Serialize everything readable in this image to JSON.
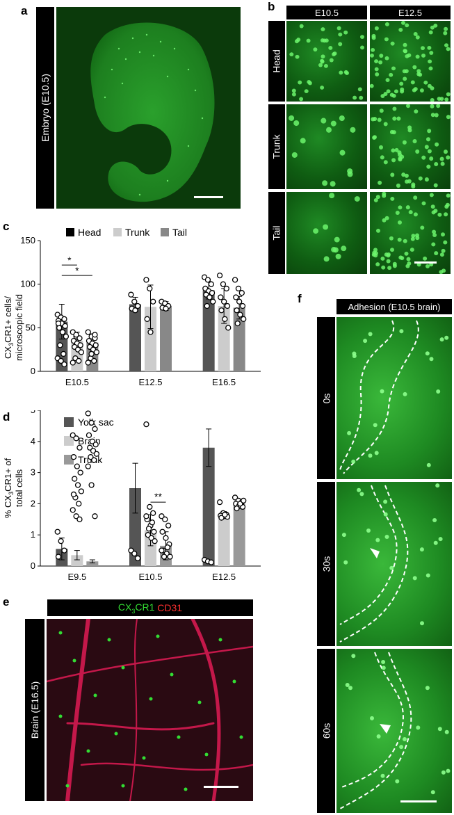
{
  "panels": {
    "a": {
      "label": "a",
      "side_label": "Embryo (E10.5)"
    },
    "b": {
      "label": "b",
      "columns": [
        "E10.5",
        "E12.5"
      ],
      "rows": [
        "Head",
        "Trunk",
        "Tail"
      ]
    },
    "c": {
      "label": "c"
    },
    "d": {
      "label": "d"
    },
    "e": {
      "label": "e",
      "side_label": "Brain (E16.5)",
      "title_green": "CX",
      "title_sub": "3",
      "title_green_rest": "CR1",
      "title_red": "CD31"
    },
    "f": {
      "label": "f",
      "title": "Adhesion (E10.5 brain)",
      "rows": [
        "0s",
        "30s",
        "60s"
      ]
    }
  },
  "chart_data": [
    {
      "id": "c",
      "type": "bar",
      "categories": [
        "E10.5",
        "E12.5",
        "E16.5"
      ],
      "series": [
        {
          "name": "Head",
          "values": [
            57,
            77,
            93
          ],
          "errors": [
            20,
            8,
            10
          ]
        },
        {
          "name": "Trunk",
          "values": [
            35,
            74,
            75
          ],
          "errors": [
            10,
            25,
            20
          ]
        },
        {
          "name": "Tail",
          "values": [
            33,
            75,
            73
          ],
          "errors": [
            10,
            5,
            13
          ]
        }
      ],
      "points": [
        [
          [
            65,
            62,
            60,
            58,
            55,
            52,
            50,
            45,
            40,
            30,
            20,
            15,
            12,
            8,
            55
          ],
          [
            45,
            40,
            38,
            35,
            32,
            30,
            28,
            25,
            22,
            15,
            12,
            10,
            42
          ],
          [
            45,
            40,
            38,
            35,
            32,
            30,
            28,
            25,
            22,
            15,
            12,
            10,
            20,
            42
          ]
        ],
        [
          [
            88,
            80,
            75,
            72,
            70
          ],
          [
            105,
            95,
            80,
            60,
            45
          ],
          [
            80,
            78,
            75,
            73,
            72
          ]
        ],
        [
          [
            108,
            105,
            100,
            95,
            92,
            90,
            88,
            85,
            80,
            75
          ],
          [
            110,
            100,
            95,
            85,
            80,
            75,
            70,
            60,
            50
          ],
          [
            105,
            95,
            90,
            85,
            80,
            75,
            70,
            65,
            60,
            55
          ]
        ]
      ],
      "ylabel": "CX3CR1+ cells/\nmicroscopic field",
      "ylim": [
        0,
        150
      ],
      "yticks": [
        0,
        50,
        100,
        150
      ],
      "colors": [
        "#555555",
        "#cccccc",
        "#888888"
      ],
      "legend": "top",
      "significance": [
        {
          "text": "*"
        },
        {
          "text": "*"
        }
      ]
    },
    {
      "id": "d",
      "type": "bar",
      "categories": [
        "E9.5",
        "E10.5",
        "E12.5"
      ],
      "series": [
        {
          "name": "Yolk sac",
          "values": [
            0.55,
            2.5,
            3.8
          ],
          "errors": [
            0.35,
            0.8,
            0.6
          ]
        },
        {
          "name": "Brain",
          "values": [
            0.35,
            1.15,
            1.65
          ],
          "errors": [
            0.15,
            0.5,
            0.1
          ]
        },
        {
          "name": "Trunk",
          "values": [
            0.15,
            0.65,
            2.0
          ],
          "errors": [
            0.05,
            0.45,
            0.15
          ]
        }
      ],
      "points": [
        [
          [
            1.1,
            0.8,
            0.5,
            0.3
          ],
          [
            4.2,
            4.1,
            3.8,
            3.5,
            3.2,
            3.0,
            2.8,
            2.6,
            2.4,
            2.2,
            2.0,
            1.8,
            1.6,
            1.5,
            2.3
          ],
          [
            4.9,
            4.6,
            4.4,
            4.2,
            4.0,
            3.9,
            3.8,
            3.7,
            3.6,
            3.5,
            3.4,
            3.2,
            2.6,
            1.6
          ]
        ],
        [
          [
            0.5,
            0.4,
            0.25
          ],
          [
            4.55,
            1.9,
            1.7,
            1.5,
            1.3,
            1.1,
            1.0,
            0.9,
            0.8,
            1.2,
            1.4,
            1.6
          ],
          [
            1.6,
            1.5,
            1.3,
            1.1,
            0.9,
            0.7,
            0.5,
            0.4,
            0.3,
            0.3,
            0.6,
            0.5
          ]
        ],
        [
          [
            0.2,
            0.15,
            0.12
          ],
          [
            2.05,
            1.7,
            1.65,
            1.62,
            1.6,
            1.58,
            1.55,
            1.65
          ],
          [
            2.2,
            2.1,
            2.05,
            2.0,
            1.95,
            1.9,
            1.85,
            2.0,
            2.1
          ]
        ]
      ],
      "ylabel": "% CX3CR1+ of\ntotal cells",
      "ylim": [
        0,
        5
      ],
      "yticks": [
        0,
        1,
        2,
        3,
        4,
        5
      ],
      "colors": [
        "#555555",
        "#cccccc",
        "#999999"
      ],
      "legend": "top-left",
      "significance": [
        {
          "text": "**"
        }
      ]
    }
  ]
}
